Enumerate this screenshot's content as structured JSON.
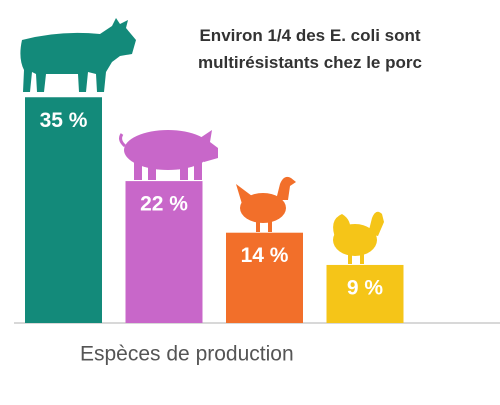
{
  "chart_data": {
    "type": "bar",
    "title": "Environ 1/4 des E. coli sont multirésistants chez le porc",
    "xlabel": "Espèces de production",
    "categories": [
      null,
      null,
      null,
      null
    ],
    "values": [
      35,
      22,
      14,
      9
    ],
    "value_labels": [
      "35 %",
      "22 %",
      "14 %",
      "9 %"
    ],
    "colors": [
      "#138a7a",
      "#c867c9",
      "#f26f2a",
      "#f5c518"
    ]
  }
}
